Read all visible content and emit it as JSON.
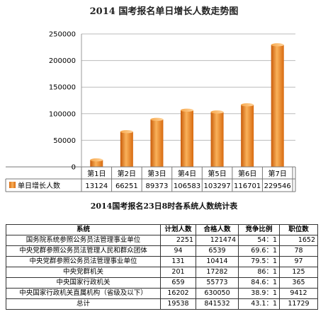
{
  "chart_data": {
    "type": "bar",
    "title": "2014 国考报名单日增长人数走势图",
    "categories": [
      "第1日",
      "第2日",
      "第3日",
      "第4日",
      "第5日",
      "第6日",
      "第7日"
    ],
    "series": [
      {
        "name": "单日增长人数",
        "values": [
          13124,
          66251,
          89373,
          106583,
          103297,
          116701,
          229546
        ]
      }
    ],
    "ylim": [
      0,
      250000
    ],
    "yticks": [
      "0",
      "50000",
      "100000",
      "150000",
      "200000",
      "250000"
    ],
    "grid": true,
    "legend": "data-table-left",
    "colors": {
      "bar_light": "#f9b15a",
      "bar_mid": "#ef8220",
      "bar_dark": "#c95c0a"
    }
  },
  "table": {
    "title": "2014国考报名23日8时各系统人数统计表",
    "headers": [
      "系统",
      "计划人数",
      "合格人数",
      "竞争比例",
      "职位数"
    ],
    "rows": [
      [
        "国务院系统参照公务员法管理事业单位",
        "2251",
        "121474",
        "54：1",
        "1652"
      ],
      [
        "中央党群参照公务员法管理人民和群众团体",
        "94",
        "6539",
        "69.6：1",
        "78"
      ],
      [
        "中央党群参照公务员法管理事业单位",
        "131",
        "10414",
        "79.5：1",
        "97"
      ],
      [
        "中央党群机关",
        "201",
        "17282",
        "86：1",
        "125"
      ],
      [
        "中央国家行政机关",
        "659",
        "55773",
        "84.6：1",
        "365"
      ],
      [
        "中央国家行政机关直属机构（省级及以下）",
        "16202",
        "630050",
        "38.9：1",
        "9412"
      ],
      [
        "总计",
        "19538",
        "841532",
        "43.1：1",
        "11729"
      ]
    ]
  }
}
